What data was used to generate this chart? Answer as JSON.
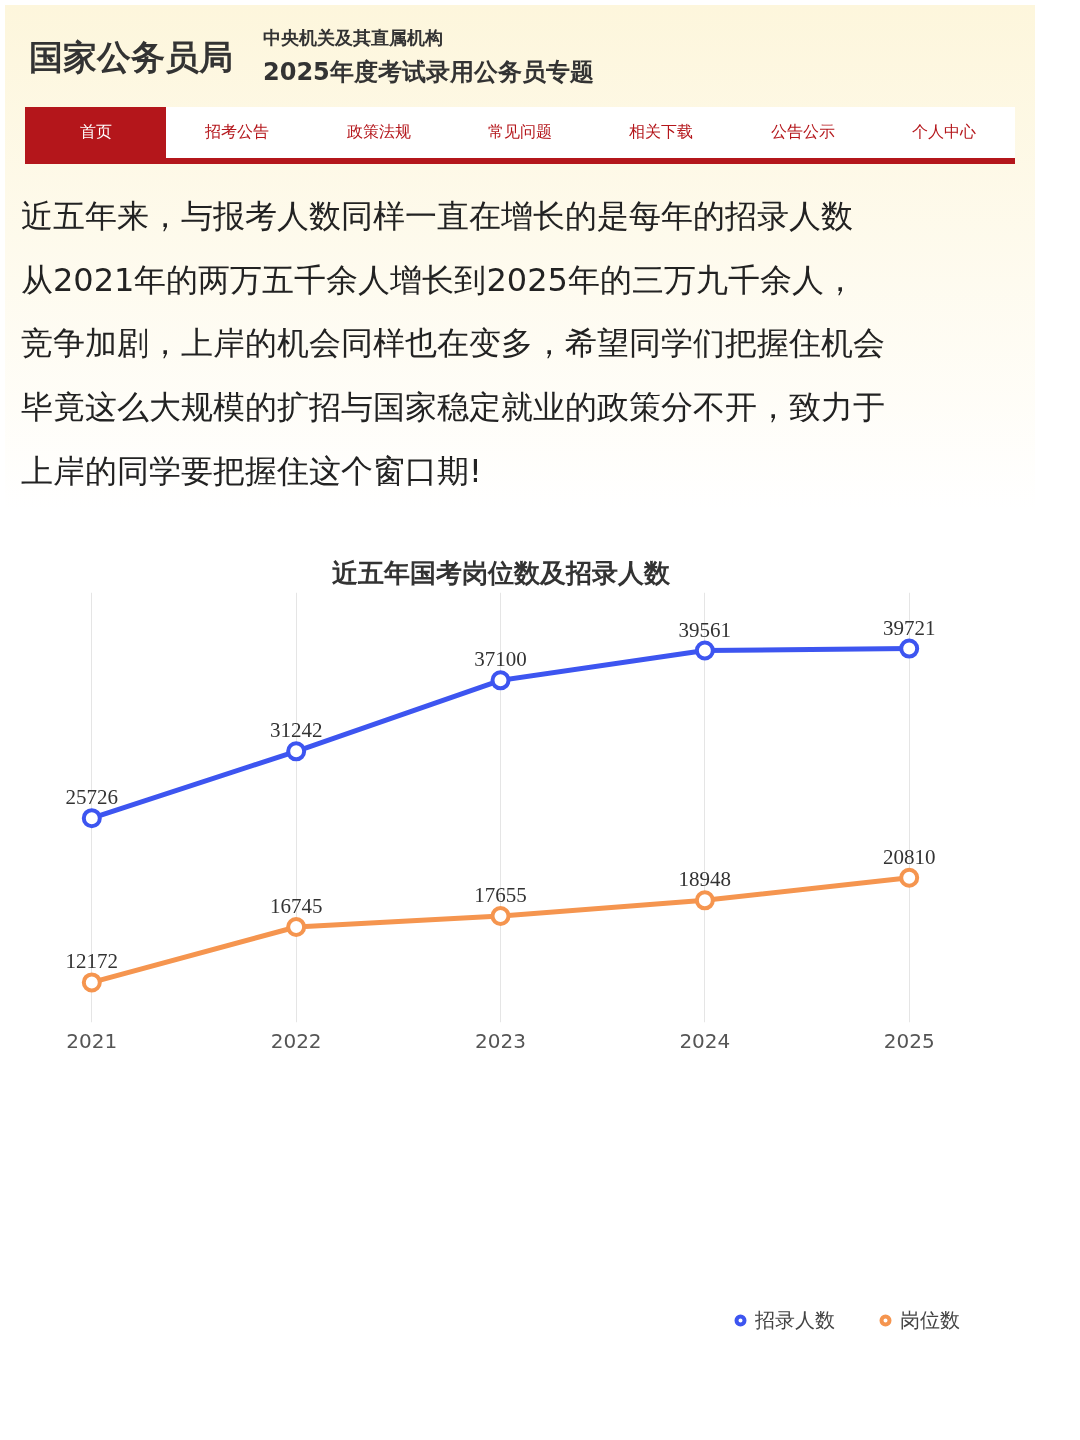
{
  "chart_data": {
    "type": "line",
    "title": "近五年国考岗位数及招录人数",
    "categories": [
      "2021",
      "2022",
      "2023",
      "2024",
      "2025"
    ],
    "series": [
      {
        "name": "招录人数",
        "color": "#3d55f0",
        "values": [
          25726,
          31242,
          37100,
          39561,
          39721
        ]
      },
      {
        "name": "岗位数",
        "color": "#f5954f",
        "values": [
          12172,
          16745,
          17655,
          18948,
          20810
        ]
      }
    ],
    "data_labels": true,
    "grid": "x",
    "legend": "bottom",
    "marker": "circle",
    "annotations": [
      "国家公务员局",
      "中央机关及其直属机构",
      "2025年度考试录用公务员专题",
      "首页",
      "招考公告",
      "政策法规",
      "常见问题",
      "相关下载",
      "公告公示",
      "个人中心",
      "近五年来，与报考人数同样一直在增长的是每年的招录人数",
      "从2021年的两万五千余人增长到2025年的三万九千余人，",
      "竞争加剧，上岸的机会同样也在变多，希望同学们把握住机会",
      "毕竟这么大规模的扩招与国家稳定就业的政策分不开，致力于",
      "上岸的同学要把握住这个窗口期!"
    ]
  }
}
